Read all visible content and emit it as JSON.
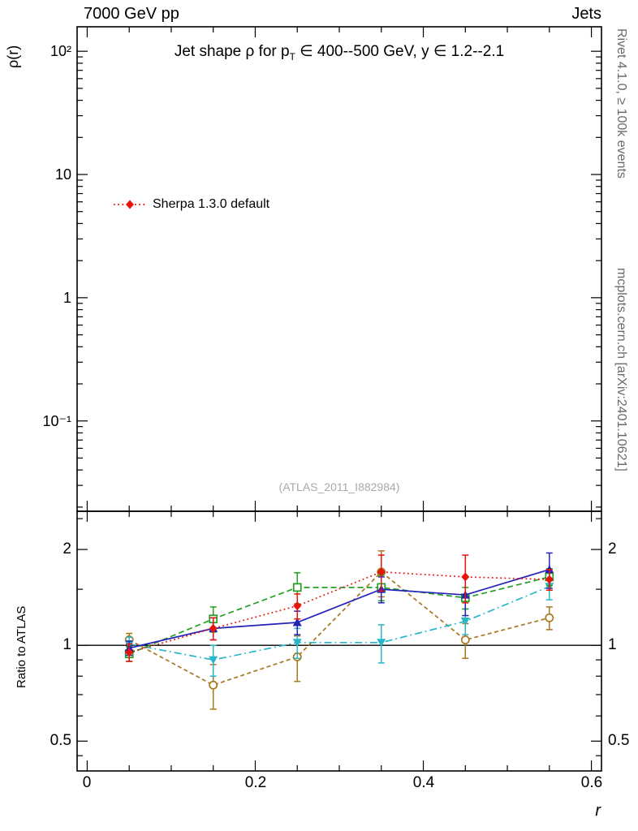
{
  "header": {
    "left": "7000 GeV pp",
    "right": "Jets"
  },
  "main_panel": {
    "title": {
      "pre": "Jet shape ρ for p",
      "sub": "T",
      "post": " ∈ 400--500 GeV, y ∈ 1.2--2.1"
    },
    "ylabel": "ρ(r)",
    "watermark": "(ATLAS_2011_I882984)",
    "legend": [
      {
        "label": "Sherpa 1.3.0 default",
        "series_id": "sherpa-default"
      }
    ]
  },
  "ratio_panel": {
    "ylabel": "Ratio to ATLAS"
  },
  "side_notes": {
    "top": "Rivet 4.1.0, ≥ 100k events",
    "bottom": "mcplots.cern.ch [arXiv:2401.10621]"
  },
  "chart_data": {
    "type": "line",
    "title": "Jet shape ρ for p_T ∈ 400--500 GeV, y ∈ 1.2--2.1",
    "xlabel": "r",
    "x": [
      0.05,
      0.15,
      0.25,
      0.35,
      0.45,
      0.55
    ],
    "x_axis": {
      "label": "r",
      "lim": [
        -0.012,
        0.612
      ],
      "minor_step": 0.05,
      "major_ticks": [
        {
          "v": 0,
          "label": "0"
        },
        {
          "v": 0.2,
          "label": "0.2"
        },
        {
          "v": 0.4,
          "label": "0.4"
        },
        {
          "v": 0.6,
          "label": "0.6"
        }
      ]
    },
    "main_panel": {
      "ylabel": "ρ(r)",
      "yscale": "log",
      "ylim": [
        0.0185,
        158
      ],
      "yticks": [
        {
          "v": 100,
          "label": "10²"
        },
        {
          "v": 10,
          "label": "10"
        },
        {
          "v": 1,
          "label": "1"
        },
        {
          "v": 0.1,
          "label": "10⁻¹"
        }
      ]
    },
    "ratio_panel": {
      "ylabel": "Ratio to ATLAS",
      "yscale": "log",
      "ylim": [
        0.403,
        2.637
      ],
      "reference_line": 1,
      "yticks": [
        {
          "v": 2,
          "label": "2"
        },
        {
          "v": 1,
          "label": "1"
        },
        {
          "v": 0.5,
          "label": "0.5"
        }
      ],
      "minor_ticks": [
        0.45,
        0.6,
        0.7,
        0.8,
        0.9,
        1.5,
        2.5
      ]
    },
    "series": [
      {
        "id": "sherpa-default",
        "name": "Sherpa 1.3.0 default",
        "color": "#e8130b",
        "line": "dotted",
        "marker": "diamond-filled",
        "ratio": [
          0.95,
          1.13,
          1.33,
          1.7,
          1.64,
          1.61
        ],
        "ratio_err": [
          0.06,
          0.09,
          0.12,
          0.22,
          0.28,
          0.12
        ]
      },
      {
        "id": "series-blue",
        "name": "",
        "color": "#2323b8",
        "line": "solid",
        "marker": "triangle-up-filled",
        "ratio": [
          0.98,
          1.13,
          1.18,
          1.5,
          1.44,
          1.73
        ],
        "ratio_err": [
          0.05,
          0.09,
          0.1,
          0.14,
          0.2,
          0.22
        ]
      },
      {
        "id": "series-green",
        "name": "",
        "color": "#22a022",
        "line": "dashed",
        "marker": "square-open",
        "ratio": [
          0.94,
          1.21,
          1.52,
          1.52,
          1.41,
          1.64
        ],
        "ratio_err": [
          0.05,
          0.11,
          0.17,
          0.14,
          0.11,
          0.1
        ]
      },
      {
        "id": "series-cyan",
        "name": "",
        "color": "#2ab6c9",
        "line": "dashdot",
        "marker": "triangle-down-filled",
        "ratio": [
          1.01,
          0.9,
          1.02,
          1.02,
          1.19,
          1.53
        ],
        "ratio_err": [
          0.05,
          0.1,
          0.11,
          0.14,
          0.11,
          0.14
        ]
      },
      {
        "id": "series-brown",
        "name": "",
        "color": "#a8761d",
        "line": "dashed-short",
        "marker": "circle-open",
        "ratio": [
          1.04,
          0.75,
          0.92,
          1.7,
          1.04,
          1.22
        ],
        "ratio_err": [
          0.05,
          0.12,
          0.15,
          0.28,
          0.13,
          0.1
        ]
      }
    ]
  }
}
